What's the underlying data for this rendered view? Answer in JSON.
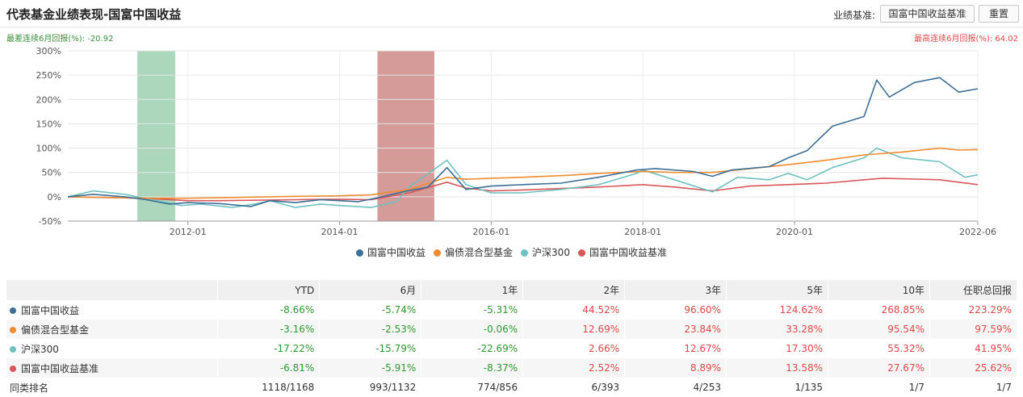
{
  "header": {
    "title": "代表基金业绩表现-国富中国收益",
    "bench_label": "业绩基准:",
    "bench_button": "国富中国收益基准",
    "reset_button": "重置"
  },
  "extremes": {
    "worst": "最差连续6月回报(%): -20.92",
    "best": "最高连续6月回报(%): 64.02"
  },
  "colors": {
    "fund": "#3d6f97",
    "mixed": "#f08c2e",
    "hs300": "#6fc1c0",
    "bench": "#d9565a",
    "worst_band": "#9fd0b1",
    "best_band": "#cd8a87"
  },
  "chart_data": {
    "type": "line",
    "ylim": [
      -50,
      300
    ],
    "y_ticks": [
      "-50%",
      "0%",
      "50%",
      "100%",
      "150%",
      "200%",
      "250%",
      "300%"
    ],
    "y_tick_values": [
      -50,
      0,
      50,
      100,
      150,
      200,
      250,
      300
    ],
    "x_range": [
      "2010-06",
      "2022-06"
    ],
    "x_ticks": [
      "2012-01",
      "2014-01",
      "2016-01",
      "2018-01",
      "2020-01",
      "2022-06"
    ],
    "x_tick_dates": [
      "2012-01",
      "2014-01",
      "2016-01",
      "2018-01",
      "2020-01",
      "2022-06"
    ],
    "shaded_periods": [
      {
        "kind": "worst",
        "start": "2011-05",
        "end": "2011-11"
      },
      {
        "kind": "best",
        "start": "2014-07",
        "end": "2015-04"
      }
    ],
    "series": [
      {
        "name": "国富中国收益",
        "color_key": "fund",
        "points": [
          [
            "2010-06",
            0
          ],
          [
            "2010-10",
            5
          ],
          [
            "2011-03",
            0
          ],
          [
            "2011-06",
            -5
          ],
          [
            "2011-10",
            -15
          ],
          [
            "2012-01",
            -12
          ],
          [
            "2012-06",
            -14
          ],
          [
            "2012-11",
            -20
          ],
          [
            "2013-02",
            -8
          ],
          [
            "2013-06",
            -12
          ],
          [
            "2013-10",
            -6
          ],
          [
            "2014-01",
            -8
          ],
          [
            "2014-04",
            -10
          ],
          [
            "2014-07",
            -2
          ],
          [
            "2014-11",
            10
          ],
          [
            "2015-03",
            20
          ],
          [
            "2015-06",
            60
          ],
          [
            "2015-09",
            15
          ],
          [
            "2016-01",
            22
          ],
          [
            "2016-06",
            25
          ],
          [
            "2016-12",
            28
          ],
          [
            "2017-06",
            40
          ],
          [
            "2017-12",
            55
          ],
          [
            "2018-03",
            58
          ],
          [
            "2018-09",
            52
          ],
          [
            "2018-12",
            42
          ],
          [
            "2019-03",
            55
          ],
          [
            "2019-09",
            62
          ],
          [
            "2019-12",
            80
          ],
          [
            "2020-03",
            95
          ],
          [
            "2020-07",
            145
          ],
          [
            "2020-12",
            165
          ],
          [
            "2021-02",
            240
          ],
          [
            "2021-04",
            205
          ],
          [
            "2021-08",
            235
          ],
          [
            "2021-12",
            245
          ],
          [
            "2022-03",
            215
          ],
          [
            "2022-06",
            222
          ]
        ]
      },
      {
        "name": "偏债混合型基金",
        "color_key": "mixed",
        "points": [
          [
            "2010-06",
            0
          ],
          [
            "2011-06",
            -3
          ],
          [
            "2012-01",
            -3
          ],
          [
            "2012-06",
            -2
          ],
          [
            "2013-06",
            1
          ],
          [
            "2014-01",
            2
          ],
          [
            "2014-06",
            4
          ],
          [
            "2014-12",
            15
          ],
          [
            "2015-06",
            40
          ],
          [
            "2015-09",
            36
          ],
          [
            "2016-01",
            38
          ],
          [
            "2016-06",
            40
          ],
          [
            "2017-01",
            44
          ],
          [
            "2017-06",
            48
          ],
          [
            "2018-01",
            52
          ],
          [
            "2018-06",
            50
          ],
          [
            "2018-12",
            50
          ],
          [
            "2019-06",
            58
          ],
          [
            "2019-12",
            66
          ],
          [
            "2020-06",
            75
          ],
          [
            "2020-12",
            86
          ],
          [
            "2021-06",
            92
          ],
          [
            "2021-12",
            100
          ],
          [
            "2022-03",
            96
          ],
          [
            "2022-06",
            97
          ]
        ]
      },
      {
        "name": "沪深300",
        "color_key": "hs300",
        "points": [
          [
            "2010-06",
            0
          ],
          [
            "2010-10",
            12
          ],
          [
            "2011-03",
            5
          ],
          [
            "2011-08",
            -8
          ],
          [
            "2011-12",
            -18
          ],
          [
            "2012-03",
            -15
          ],
          [
            "2012-08",
            -22
          ],
          [
            "2012-12",
            -14
          ],
          [
            "2013-02",
            -8
          ],
          [
            "2013-06",
            -22
          ],
          [
            "2013-10",
            -15
          ],
          [
            "2014-01",
            -18
          ],
          [
            "2014-06",
            -22
          ],
          [
            "2014-10",
            -10
          ],
          [
            "2014-12",
            20
          ],
          [
            "2015-06",
            75
          ],
          [
            "2015-09",
            25
          ],
          [
            "2016-01",
            8
          ],
          [
            "2016-06",
            8
          ],
          [
            "2016-12",
            15
          ],
          [
            "2017-06",
            25
          ],
          [
            "2017-12",
            48
          ],
          [
            "2018-01",
            55
          ],
          [
            "2018-06",
            35
          ],
          [
            "2018-12",
            10
          ],
          [
            "2019-04",
            40
          ],
          [
            "2019-09",
            35
          ],
          [
            "2019-12",
            48
          ],
          [
            "2020-03",
            35
          ],
          [
            "2020-07",
            60
          ],
          [
            "2020-12",
            80
          ],
          [
            "2021-02",
            100
          ],
          [
            "2021-06",
            80
          ],
          [
            "2021-12",
            72
          ],
          [
            "2022-04",
            40
          ],
          [
            "2022-06",
            45
          ]
        ]
      },
      {
        "name": "国富中国收益基准",
        "color_key": "bench",
        "points": [
          [
            "2010-06",
            0
          ],
          [
            "2011-06",
            -3
          ],
          [
            "2012-01",
            -8
          ],
          [
            "2012-06",
            -8
          ],
          [
            "2013-06",
            -6
          ],
          [
            "2014-01",
            -5
          ],
          [
            "2014-06",
            -6
          ],
          [
            "2014-12",
            8
          ],
          [
            "2015-06",
            30
          ],
          [
            "2015-09",
            18
          ],
          [
            "2016-01",
            12
          ],
          [
            "2016-06",
            14
          ],
          [
            "2017-06",
            20
          ],
          [
            "2018-01",
            25
          ],
          [
            "2018-06",
            20
          ],
          [
            "2018-12",
            12
          ],
          [
            "2019-06",
            22
          ],
          [
            "2019-12",
            25
          ],
          [
            "2020-06",
            28
          ],
          [
            "2020-12",
            35
          ],
          [
            "2021-03",
            38
          ],
          [
            "2021-12",
            35
          ],
          [
            "2022-06",
            25
          ]
        ]
      }
    ]
  },
  "legend": [
    {
      "label": "国富中国收益",
      "color_key": "fund"
    },
    {
      "label": "偏债混合型基金",
      "color_key": "mixed"
    },
    {
      "label": "沪深300",
      "color_key": "hs300"
    },
    {
      "label": "国富中国收益基准",
      "color_key": "bench"
    }
  ],
  "table": {
    "columns": [
      "",
      "YTD",
      "6月",
      "1年",
      "2年",
      "3年",
      "5年",
      "10年",
      "任职总回报"
    ],
    "rows": [
      {
        "name": "国富中国收益",
        "color_key": "fund",
        "values": [
          "-8.66%",
          "-5.74%",
          "-5.31%",
          "44.52%",
          "96.60%",
          "124.62%",
          "268.85%",
          "223.29%"
        ]
      },
      {
        "name": "偏债混合型基金",
        "color_key": "mixed",
        "values": [
          "-3.16%",
          "-2.53%",
          "-0.06%",
          "12.69%",
          "23.84%",
          "33.28%",
          "95.54%",
          "97.59%"
        ]
      },
      {
        "name": "沪深300",
        "color_key": "hs300",
        "values": [
          "-17.22%",
          "-15.79%",
          "-22.69%",
          "2.66%",
          "12.67%",
          "17.30%",
          "55.32%",
          "41.95%"
        ]
      },
      {
        "name": "国富中国收益基准",
        "color_key": "bench",
        "values": [
          "-6.81%",
          "-5.91%",
          "-8.37%",
          "2.52%",
          "8.89%",
          "13.58%",
          "27.67%",
          "25.62%"
        ]
      },
      {
        "name": "同类排名",
        "color_key": "",
        "values": [
          "1118/1168",
          "993/1132",
          "774/856",
          "6/393",
          "4/253",
          "1/135",
          "1/7",
          "1/7"
        ]
      }
    ]
  }
}
